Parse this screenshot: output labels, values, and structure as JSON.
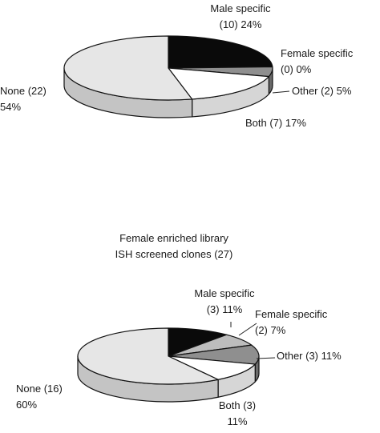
{
  "chart_data": [
    {
      "type": "pie",
      "title_lines": [],
      "slices": [
        {
          "key": "male",
          "label_lines": [
            "Male specific",
            "(10)  24%"
          ],
          "count": 10,
          "percent": 24,
          "color": "#0a0a0a",
          "side": "#000000"
        },
        {
          "key": "female",
          "label_lines": [
            "Female specific",
            "(0)  0%"
          ],
          "count": 0,
          "percent": 0,
          "color": "#bdbdbd",
          "side": "#8e8e8e"
        },
        {
          "key": "other",
          "label_lines": [
            "Other  (2)  5%"
          ],
          "count": 2,
          "percent": 5,
          "color": "#8f8f8f",
          "side": "#6a6a6a"
        },
        {
          "key": "both",
          "label_lines": [
            "Both  (7)  17%"
          ],
          "count": 7,
          "percent": 17,
          "color": "#ffffff",
          "side": "#d6d6d6"
        },
        {
          "key": "none",
          "label_lines": [
            "None  (22)",
            "54%"
          ],
          "count": 22,
          "percent": 54,
          "color": "#e6e6e6",
          "side": "#c4c4c4"
        }
      ]
    },
    {
      "type": "pie",
      "title_lines": [
        "Female enriched library",
        "ISH screened clones (27)"
      ],
      "slices": [
        {
          "key": "male",
          "label_lines": [
            "Male specific",
            "(3)  11%"
          ],
          "count": 3,
          "percent": 11,
          "color": "#0a0a0a",
          "side": "#000000"
        },
        {
          "key": "female",
          "label_lines": [
            "Female specific",
            "(2)  7%"
          ],
          "count": 2,
          "percent": 7,
          "color": "#bdbdbd",
          "side": "#8e8e8e"
        },
        {
          "key": "other",
          "label_lines": [
            "Other  (3)  11%"
          ],
          "count": 3,
          "percent": 11,
          "color": "#8f8f8f",
          "side": "#6a6a6a"
        },
        {
          "key": "both",
          "label_lines": [
            "Both  (3)",
            "11%"
          ],
          "count": 3,
          "percent": 11,
          "color": "#ffffff",
          "side": "#d6d6d6"
        },
        {
          "key": "none",
          "label_lines": [
            "None  (16)",
            "60%"
          ],
          "count": 16,
          "percent": 60,
          "color": "#e6e6e6",
          "side": "#c4c4c4"
        }
      ]
    }
  ]
}
